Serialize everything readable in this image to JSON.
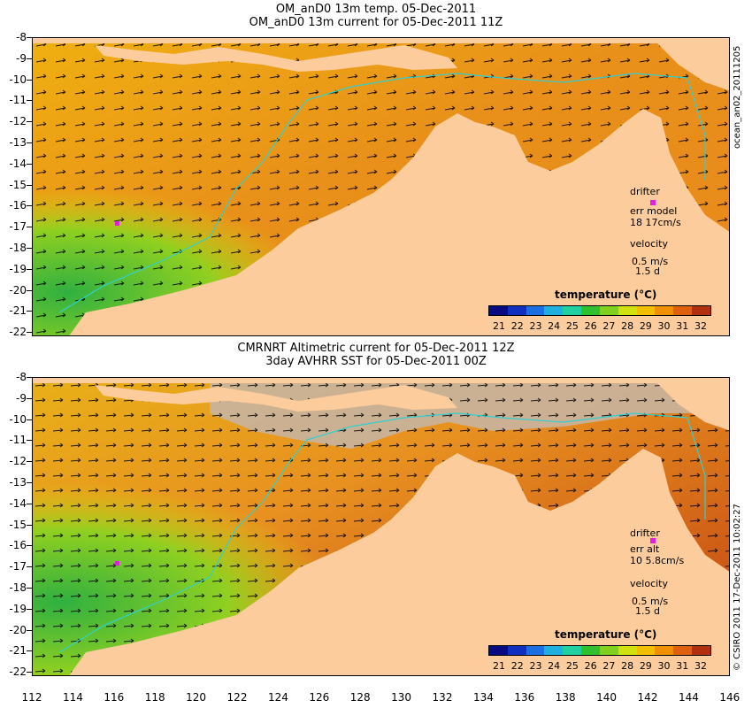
{
  "top_panel": {
    "title_line1": "OM_anD0 13m temp. 05-Dec-2011",
    "title_line2": "OM_anD0 13m current for 05-Dec-2011 11Z",
    "side_label": "ocean_an02_20111205",
    "legend": {
      "drifter": "drifter",
      "err_label": "err model",
      "err_values": "18 17cm/s",
      "velocity": "velocity",
      "velocity_scale": "0.5 m/s",
      "velocity_time": "1.5 d"
    },
    "colorbar_title": "temperature (°C)"
  },
  "bottom_panel": {
    "title_line1": "CMRNRT Altimetric current for 05-Dec-2011 12Z",
    "title_line2": "3day AVHRR SST for 05-Dec-2011 00Z",
    "side_label": "© CSIRO 2011  17-Dec-2011 10:02:27",
    "legend": {
      "drifter": "drifter",
      "err_label": "err alt",
      "err_values": "10 5.8cm/s",
      "velocity": "velocity",
      "velocity_scale": "0.5 m/s",
      "velocity_time": "1.5 d"
    },
    "colorbar_title": "temperature (°C)"
  },
  "colorbar_ticks": [
    "21",
    "22",
    "23",
    "24",
    "25",
    "26",
    "27",
    "28",
    "29",
    "30",
    "31",
    "32"
  ],
  "colorbar_colors": [
    "#0a0a80",
    "#1030c0",
    "#1a70e0",
    "#20b0e0",
    "#20d0a0",
    "#30c030",
    "#80d020",
    "#d0e010",
    "#f0c000",
    "#f09000",
    "#e06010",
    "#b03010"
  ],
  "y_ticks": [
    "-8",
    "-9",
    "-10",
    "-11",
    "-12",
    "-13",
    "-14",
    "-15",
    "-16",
    "-17",
    "-18",
    "-19",
    "-20",
    "-21",
    "-22"
  ],
  "x_ticks": [
    "112",
    "114",
    "116",
    "118",
    "120",
    "122",
    "124",
    "126",
    "128",
    "130",
    "132",
    "134",
    "136",
    "138",
    "140",
    "142",
    "144",
    "146"
  ],
  "colors": {
    "land": "#fccc9c",
    "ocean_warm": "#e8901a",
    "ocean_mid": "#f0b010",
    "ocean_cool": "#40c040",
    "missing": "#c8b4a0",
    "isobath": "#30d0d0"
  }
}
